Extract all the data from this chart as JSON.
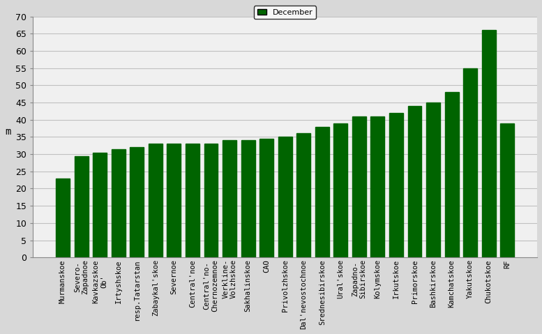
{
  "categories": [
    "Murmanskoe",
    "Severo-\nZapadnoe",
    "Kavkazskoe\nOb'",
    "Irtyshskoe",
    "resp.Tatarstan",
    "Zabaykal'skoe",
    "Severnoe",
    "Central'noe",
    "Central'no-\nChernozemnoe",
    "Verkline-\nVolzhskoe",
    "Sakhalinskoe",
    "CAO",
    "Privolzhskoe",
    "Dal'nevostochnoe",
    "Srednesibirskoe",
    "Ural'skoe",
    "Zapadno-\nSibirskoe",
    "Kolymskoe",
    "Irkutskoe",
    "Primorskoe",
    "Bashkirskoe",
    "Kamchatskoe",
    "Yakutskoe",
    "Chukotskoe",
    "RF"
  ],
  "values": [
    23,
    29.5,
    30.5,
    31.5,
    32,
    33,
    33,
    33,
    33,
    34,
    34,
    34.5,
    35,
    36,
    38,
    39,
    41,
    41,
    42,
    44,
    45,
    48,
    55,
    66,
    39
  ],
  "bar_color": "#006400",
  "ylabel": "m",
  "ylim": [
    0,
    70
  ],
  "yticks": [
    0,
    5,
    10,
    15,
    20,
    25,
    30,
    35,
    40,
    45,
    50,
    55,
    60,
    65,
    70
  ],
  "legend_label": "December",
  "fig_bg_color": "#d8d8d8",
  "plot_bg_color": "#f0f0f0",
  "grid_color": "#c0c0c0"
}
